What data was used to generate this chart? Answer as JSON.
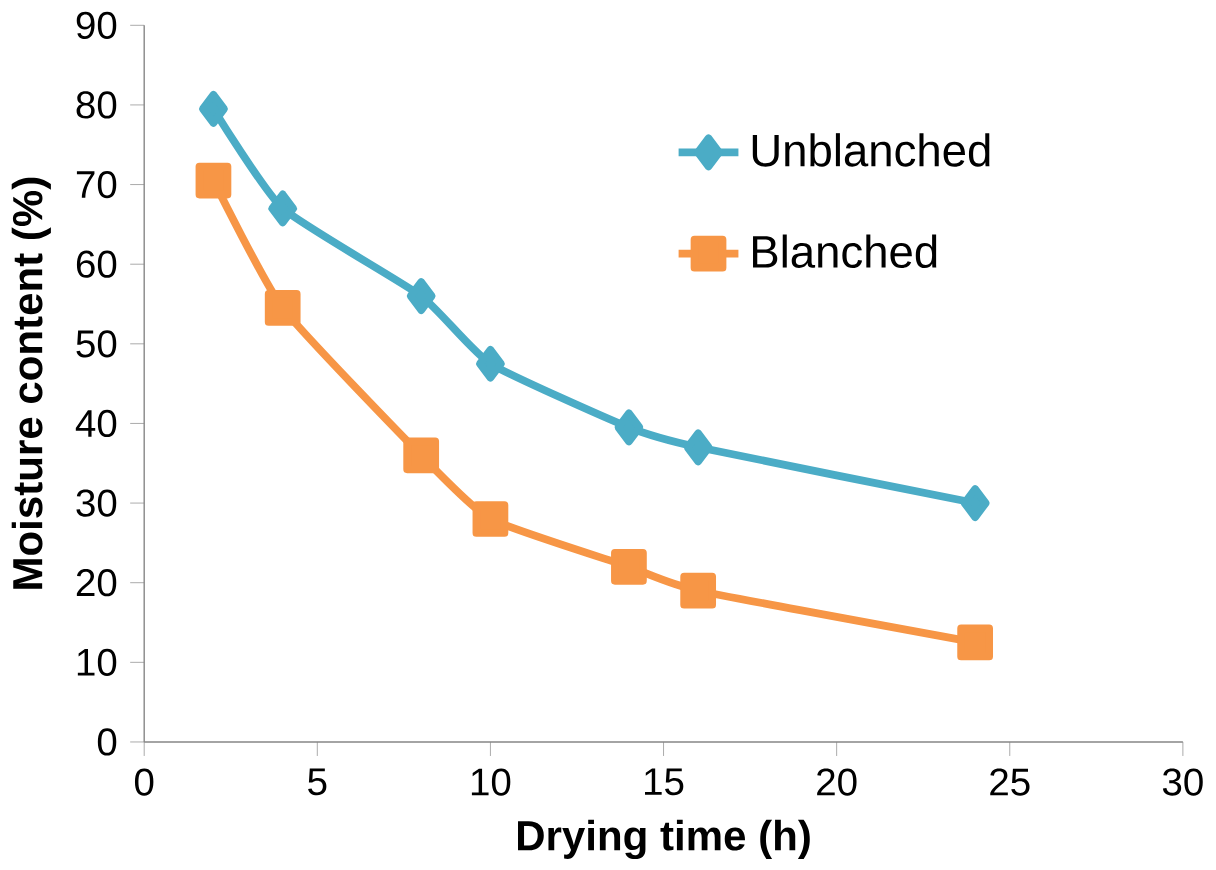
{
  "chart_data": {
    "type": "line",
    "xlabel": "Drying time (h)",
    "ylabel": "Moisture content (%)",
    "xlim": [
      0,
      30
    ],
    "xticks": [
      0,
      5,
      10,
      15,
      20,
      25,
      30
    ],
    "ylim": [
      0,
      90
    ],
    "yticks": [
      0,
      10,
      20,
      30,
      40,
      50,
      60,
      70,
      80,
      90
    ],
    "grid": false,
    "legend": "top right",
    "line_style": "solid",
    "series": [
      {
        "name": "Unblanched",
        "color": "#4bacc6",
        "marker": "diamond",
        "x": [
          2,
          4,
          8,
          10,
          14,
          16,
          24
        ],
        "values": [
          79.5,
          67,
          56,
          47.5,
          39.5,
          37,
          30
        ]
      },
      {
        "name": "Blanched",
        "color": "#f79646",
        "marker": "square",
        "x": [
          2,
          4,
          8,
          10,
          14,
          16,
          24
        ],
        "values": [
          70.5,
          54.5,
          36,
          28,
          22,
          19,
          12.5
        ]
      }
    ]
  }
}
